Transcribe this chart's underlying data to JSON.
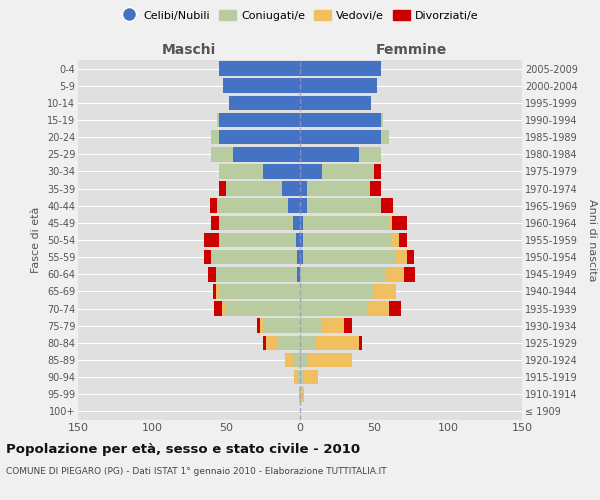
{
  "age_groups": [
    "100+",
    "95-99",
    "90-94",
    "85-89",
    "80-84",
    "75-79",
    "70-74",
    "65-69",
    "60-64",
    "55-59",
    "50-54",
    "45-49",
    "40-44",
    "35-39",
    "30-34",
    "25-29",
    "20-24",
    "15-19",
    "10-14",
    "5-9",
    "0-4"
  ],
  "birth_years": [
    "≤ 1909",
    "1910-1914",
    "1915-1919",
    "1920-1924",
    "1925-1929",
    "1930-1934",
    "1935-1939",
    "1940-1944",
    "1945-1949",
    "1950-1954",
    "1955-1959",
    "1960-1964",
    "1965-1969",
    "1970-1974",
    "1975-1979",
    "1980-1984",
    "1985-1989",
    "1990-1994",
    "1995-1999",
    "2000-2004",
    "2005-2009"
  ],
  "maschi": {
    "celibi": [
      0,
      0,
      0,
      0,
      0,
      0,
      0,
      0,
      2,
      2,
      3,
      5,
      8,
      12,
      25,
      45,
      55,
      55,
      48,
      52,
      55
    ],
    "coniugati": [
      0,
      1,
      2,
      5,
      15,
      25,
      50,
      55,
      55,
      58,
      52,
      50,
      48,
      38,
      30,
      15,
      5,
      1,
      0,
      0,
      0
    ],
    "vedovi": [
      0,
      0,
      2,
      5,
      8,
      2,
      3,
      2,
      0,
      0,
      0,
      0,
      0,
      0,
      0,
      0,
      0,
      0,
      0,
      0,
      0
    ],
    "divorziati": [
      0,
      0,
      0,
      0,
      2,
      2,
      5,
      2,
      5,
      5,
      10,
      5,
      5,
      5,
      0,
      0,
      0,
      0,
      0,
      0,
      0
    ]
  },
  "femmine": {
    "nubili": [
      0,
      0,
      0,
      0,
      0,
      0,
      0,
      0,
      0,
      2,
      2,
      2,
      5,
      5,
      15,
      40,
      55,
      55,
      48,
      52,
      55
    ],
    "coniugate": [
      0,
      1,
      2,
      5,
      10,
      15,
      45,
      50,
      58,
      62,
      60,
      58,
      50,
      42,
      35,
      15,
      5,
      1,
      0,
      0,
      0
    ],
    "vedove": [
      0,
      2,
      10,
      30,
      30,
      15,
      15,
      15,
      12,
      8,
      5,
      2,
      0,
      0,
      0,
      0,
      0,
      0,
      0,
      0,
      0
    ],
    "divorziate": [
      0,
      0,
      0,
      0,
      2,
      5,
      8,
      0,
      8,
      5,
      5,
      10,
      8,
      8,
      5,
      0,
      0,
      0,
      0,
      0,
      0
    ]
  },
  "colors": {
    "celibi": "#4472c4",
    "coniugati": "#b8cca0",
    "vedovi": "#f0c060",
    "divorziati": "#cc0000"
  },
  "title": "Popolazione per età, sesso e stato civile - 2010",
  "subtitle": "COMUNE DI PIEGARO (PG) - Dati ISTAT 1° gennaio 2010 - Elaborazione TUTTITALIA.IT",
  "xlabel_left": "Maschi",
  "xlabel_right": "Femmine",
  "ylabel_left": "Fasce di età",
  "ylabel_right": "Anni di nascita",
  "xlim": 150,
  "bg_color": "#f0f0f0",
  "plot_bg": "#e0e0e0",
  "legend_labels": [
    "Celibi/Nubili",
    "Coniugati/e",
    "Vedovi/e",
    "Divorziati/e"
  ]
}
